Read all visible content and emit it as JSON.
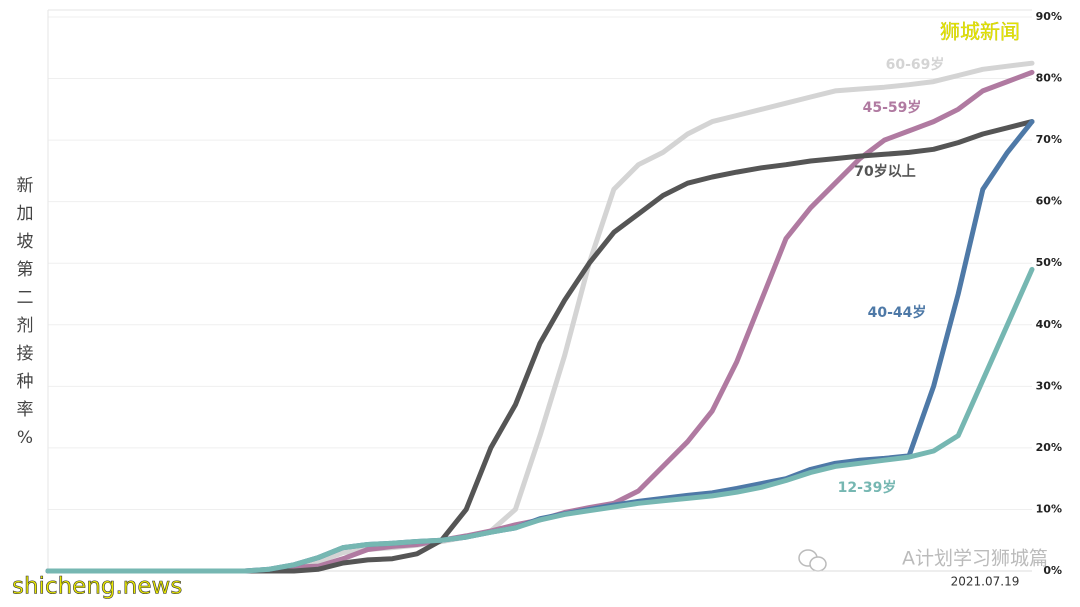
{
  "chart_data": {
    "type": "line",
    "y_label": "新加坡第二剂接种率%",
    "annotations": [
      "狮城新闻",
      "A计划学习狮城篇",
      "shicheng.news"
    ],
    "categories": [
      null,
      null,
      null,
      null,
      null,
      null,
      null,
      null,
      null,
      null,
      null,
      null,
      null,
      null,
      null,
      null,
      null,
      null,
      null,
      null,
      null,
      null,
      null,
      null,
      null,
      null,
      null,
      null,
      null,
      null,
      null,
      null,
      null,
      null,
      null,
      null,
      null,
      null,
      null,
      null,
      "2021.07.19"
    ],
    "series": [
      {
        "name": "60-69岁",
        "color": "#d4d4d4",
        "values": [
          0,
          0,
          0,
          0,
          0,
          0,
          0,
          0,
          0,
          0,
          0.5,
          1.5,
          3,
          3.5,
          3.8,
          4.2,
          4.8,
          5.5,
          6.5,
          10,
          22,
          35,
          50,
          62,
          66,
          68,
          71,
          73,
          74,
          75,
          76,
          77,
          78,
          78.3,
          78.6,
          79,
          79.5,
          80.5,
          81.5,
          82,
          82.5
        ]
      },
      {
        "name": "45-59岁",
        "color": "#b07aa1",
        "values": [
          0,
          0,
          0,
          0,
          0,
          0,
          0,
          0,
          0,
          0.2,
          0.6,
          0.8,
          2,
          3.5,
          4,
          4.3,
          5,
          5.7,
          6.5,
          7.5,
          8.3,
          9.5,
          10.3,
          11,
          13,
          17,
          21,
          26,
          34,
          44,
          54,
          59,
          63,
          67,
          70,
          71.5,
          73,
          75,
          78,
          79.5,
          81
        ]
      },
      {
        "name": "70岁以上",
        "color": "#555555",
        "values": [
          0,
          0,
          0,
          0,
          0,
          0,
          0,
          0,
          0,
          0,
          0,
          0.3,
          1.3,
          1.8,
          2,
          2.8,
          5,
          10,
          20,
          27,
          37,
          44,
          50,
          55,
          58,
          61,
          63,
          64,
          64.8,
          65.5,
          66,
          66.6,
          67,
          67.4,
          67.7,
          68,
          68.5,
          69.6,
          71,
          72,
          73
        ]
      },
      {
        "name": "40-44岁",
        "color": "#4e79a7",
        "values": [
          0,
          0,
          0,
          0,
          0,
          0,
          0,
          0,
          0,
          0.3,
          1,
          2.2,
          3.8,
          4.3,
          4.5,
          4.8,
          5,
          5.5,
          6.3,
          7,
          8.5,
          9.3,
          10,
          10.7,
          11.3,
          11.8,
          12.3,
          12.7,
          13.4,
          14.2,
          15,
          16.5,
          17.5,
          18,
          18.3,
          18.7,
          30,
          45,
          62,
          68,
          73
        ]
      },
      {
        "name": "12-39岁",
        "color": "#76b7b2",
        "values": [
          0,
          0,
          0,
          0,
          0,
          0,
          0,
          0,
          0,
          0.3,
          1,
          2.2,
          3.8,
          4.3,
          4.5,
          4.8,
          5,
          5.5,
          6.3,
          7,
          8.3,
          9.2,
          9.8,
          10.4,
          11,
          11.4,
          11.8,
          12.2,
          12.8,
          13.6,
          14.7,
          16,
          17,
          17.5,
          18,
          18.5,
          19.5,
          22,
          31,
          40,
          49
        ]
      }
    ],
    "ylim": [
      0,
      90
    ],
    "yticks": [
      {
        "value": 0,
        "label": "0%"
      },
      {
        "value": 10,
        "label": "10%"
      },
      {
        "value": 20,
        "label": "20%"
      },
      {
        "value": 30,
        "label": "30%"
      },
      {
        "value": 40,
        "label": "40%"
      },
      {
        "value": 50,
        "label": "50%"
      },
      {
        "value": 60,
        "label": "60%"
      },
      {
        "value": 70,
        "label": "70%"
      },
      {
        "value": 80,
        "label": "80%"
      },
      {
        "value": 90,
        "label": "90%"
      }
    ],
    "grid": true
  }
}
